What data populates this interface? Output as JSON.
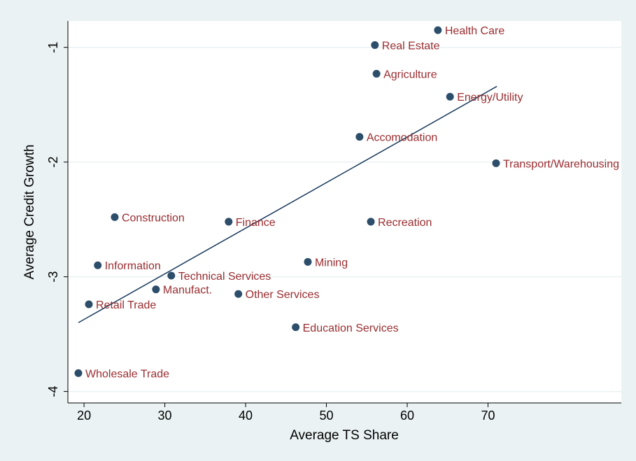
{
  "chart_data": {
    "type": "scatter",
    "xlabel": "Average TS Share",
    "ylabel": "Average Credit Growth",
    "labels": [
      "Health Care",
      "Real Estate",
      "Agriculture",
      "Energy/Utility",
      "Accomodation",
      "Transport/Warehousing",
      "Construction",
      "Finance",
      "Recreation",
      "Information",
      "Mining",
      "Technical Services",
      "Manufact.",
      "Other Services",
      "Retail Trade",
      "Education Services",
      "Wholesale Trade"
    ],
    "x": [
      63.8,
      56.0,
      56.2,
      65.3,
      54.1,
      71.0,
      23.8,
      37.9,
      55.5,
      21.7,
      47.7,
      30.8,
      28.9,
      39.1,
      20.6,
      46.2,
      19.3
    ],
    "y": [
      -0.85,
      -0.98,
      -1.23,
      -1.43,
      -1.78,
      -2.01,
      -2.48,
      -2.52,
      -2.52,
      -2.9,
      -2.87,
      -2.99,
      -3.11,
      -3.15,
      -3.24,
      -3.44,
      -3.84
    ],
    "color": "#2d4e6a",
    "label_color": "#9b2d30",
    "fit": {
      "x": [
        19.3,
        71.1
      ],
      "y": [
        -3.4,
        -1.34
      ],
      "color": "#1a3a5c"
    },
    "xlim": [
      18,
      86.5
    ],
    "ylim": [
      -4.1,
      -0.77
    ],
    "xticks": [
      20,
      30,
      40,
      50,
      60,
      70
    ],
    "yticks": [
      -1,
      -2,
      -3,
      -4
    ],
    "grid": true
  }
}
